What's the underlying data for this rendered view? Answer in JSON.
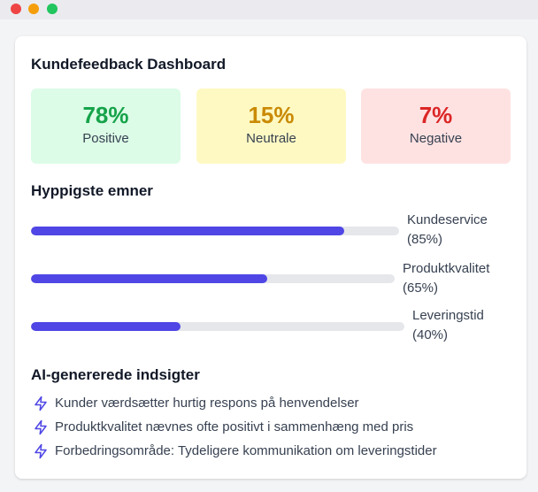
{
  "window": {
    "controls": [
      "close",
      "minimize",
      "maximize"
    ],
    "colors": {
      "close": "#ef4444",
      "minimize": "#f59e0b",
      "maximize": "#22c55e"
    }
  },
  "dashboard": {
    "title": "Kundefeedback Dashboard",
    "stats": [
      {
        "value": "78%",
        "label": "Positive",
        "color": "#16a34a",
        "background": "#dcfce7"
      },
      {
        "value": "15%",
        "label": "Neutrale",
        "color": "#ca8a04",
        "background": "#fef9c3"
      },
      {
        "value": "7%",
        "label": "Negative",
        "color": "#dc2626",
        "background": "#fee2e2"
      }
    ],
    "topics": {
      "title": "Hyppigste emner",
      "bar_color": "#4f46e5",
      "items": [
        {
          "name": "Kundeservice",
          "percent_label": "(85%)",
          "percent": 85
        },
        {
          "name": "Produktkvalitet",
          "percent_label": "(65%)",
          "percent": 65
        },
        {
          "name": "Leveringstid",
          "percent_label": "(40%)",
          "percent": 40
        }
      ]
    },
    "insights": {
      "title": "AI-genererede indsigter",
      "icon": "lightning-bolt-icon",
      "items": [
        "Kunder værdsætter hurtig respons på henvendelser",
        "Produktkvalitet nævnes ofte positivt i sammenhæng med pris",
        "Forbedringsområde: Tydeligere kommunikation om leveringstider"
      ]
    }
  }
}
